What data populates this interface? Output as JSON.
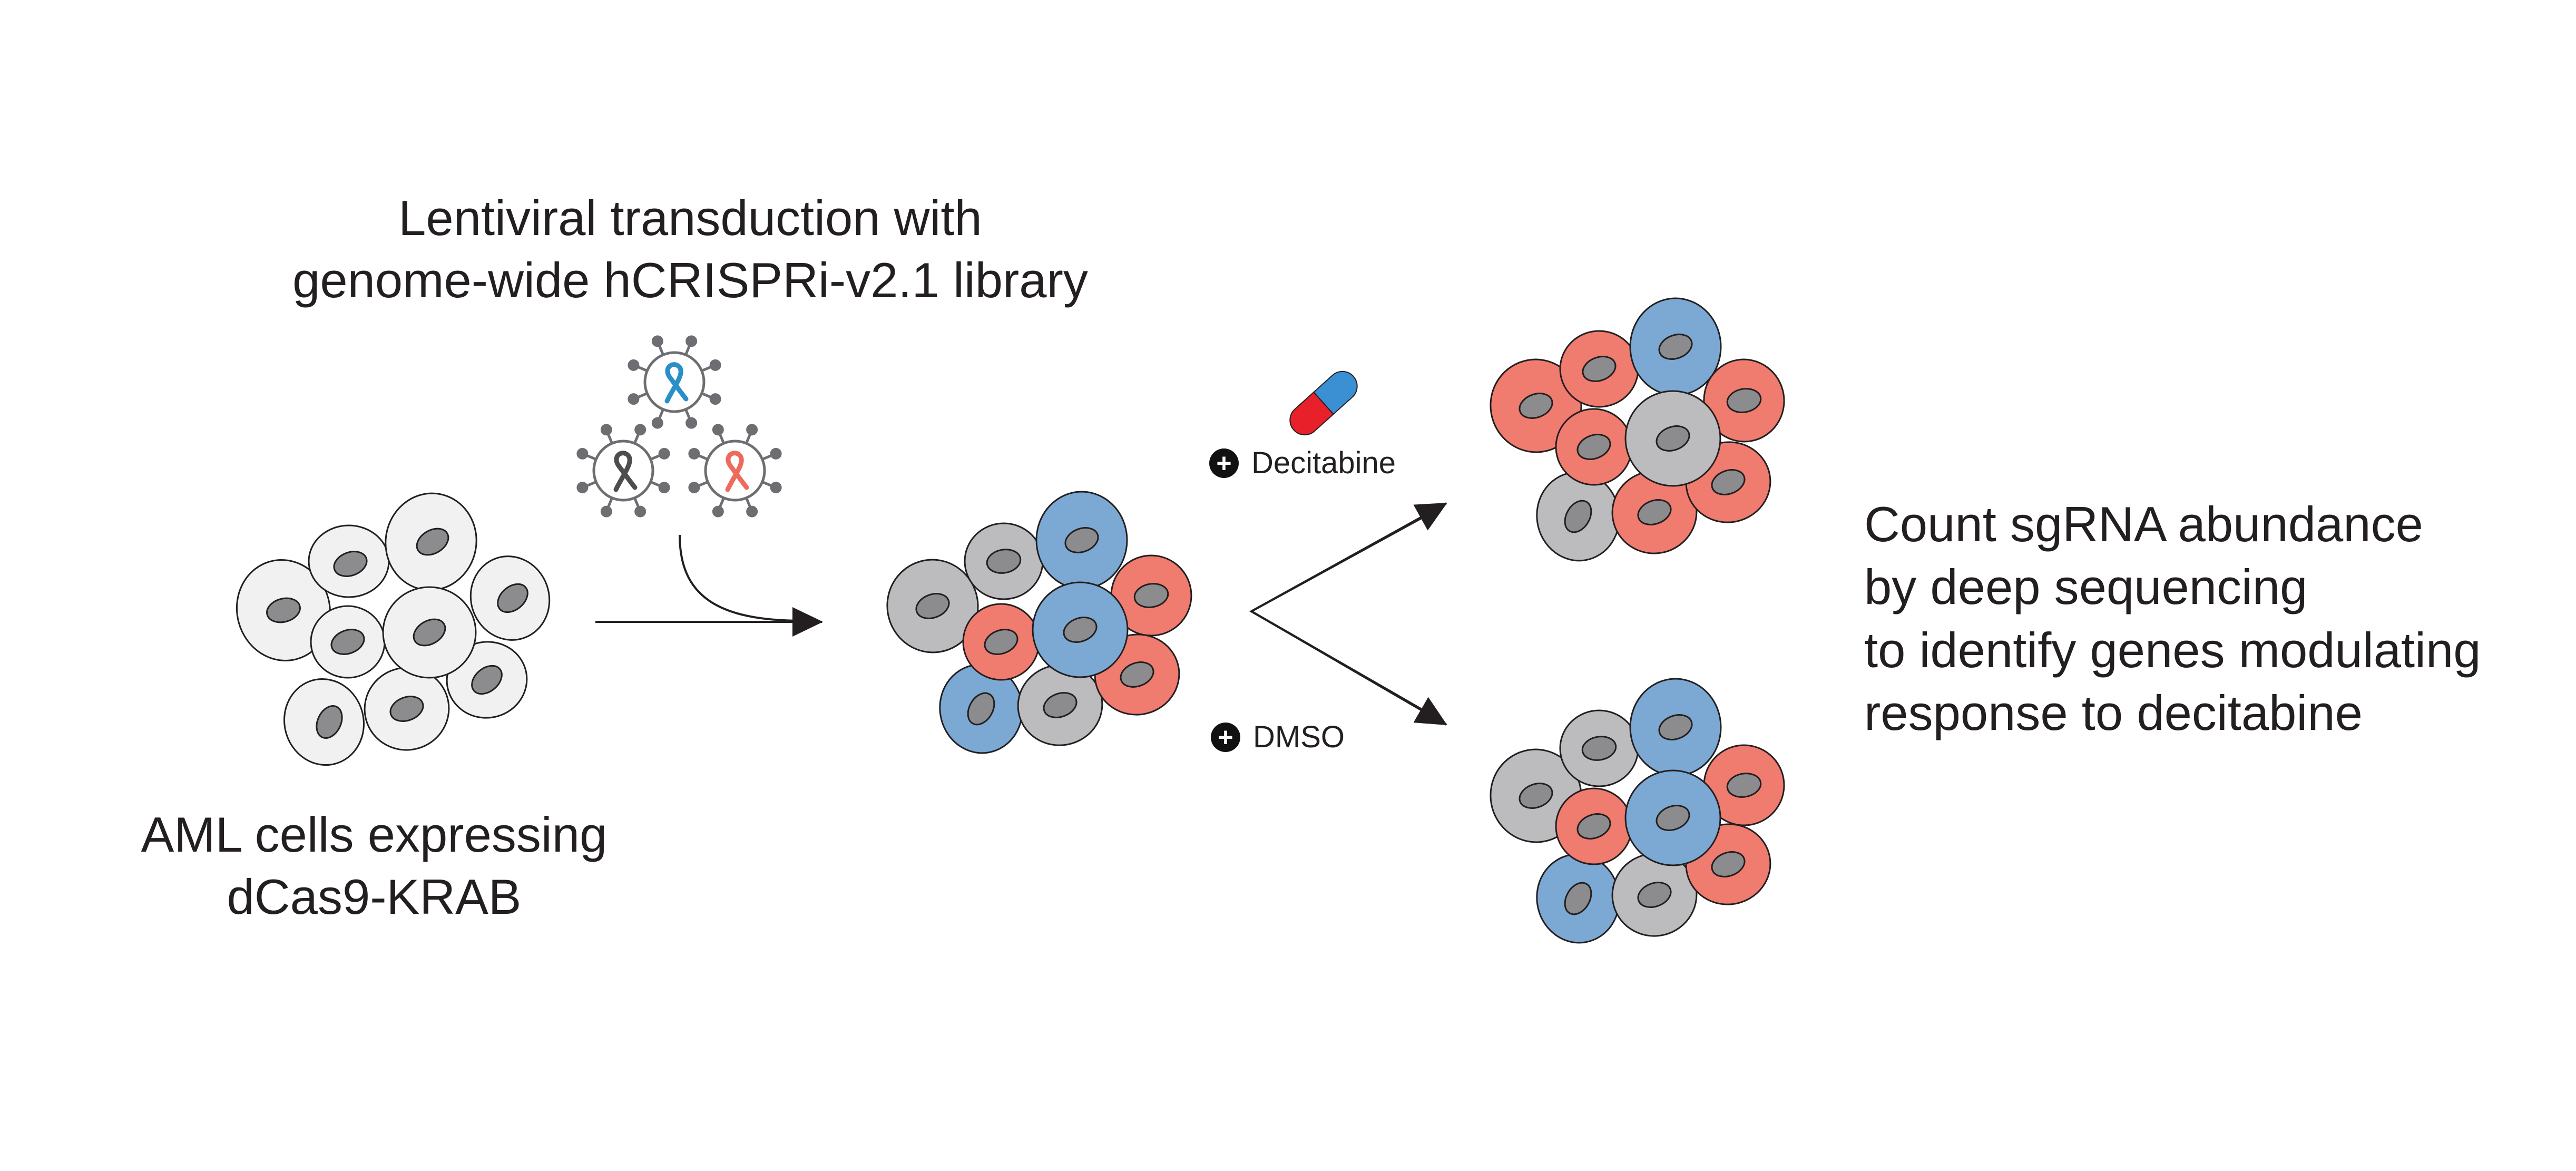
{
  "title": {
    "line1": "Lentiviral transduction with",
    "line2": "genome-wide hCRISPRi-v2.1 library"
  },
  "start_cells": {
    "label_line1": "AML cells expressing",
    "label_line2": "dCas9-KRAB"
  },
  "conditions": {
    "treatment": "Decitabine",
    "control": "DMSO"
  },
  "readout": {
    "lines": [
      "Count sgRNA abundance",
      "by deep sequencing",
      "to identify genes modulating",
      "response to decitabine"
    ]
  },
  "colors": {
    "unlabeled_cell": "#f1f1f2",
    "gray_cell": "#bcbcbe",
    "blue_cell": "#7ba9d3",
    "red_cell": "#f07b6f",
    "nucleus": "#8c8c8e",
    "outline": "#231f20",
    "virus_blue": "#2a8ec8",
    "virus_gray": "#4d4d4f",
    "virus_red": "#ee6a5c",
    "pill_red": "#e8202a",
    "pill_blue": "#3b8fd3"
  }
}
